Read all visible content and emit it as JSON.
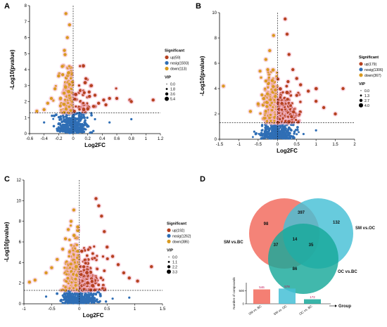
{
  "panels": [
    {
      "label": "A",
      "xlabel": "Log2FC",
      "ylabel": "-Log10(pvalue)",
      "xlim": [
        -0.6,
        1.2
      ],
      "ylim": [
        0,
        8
      ],
      "xticks": [
        "-0.6",
        "-0.4",
        "-0.2",
        "0",
        "0.2",
        "0.4",
        "0.6",
        "0.8",
        "1",
        "1.2"
      ],
      "yticks": [
        "0",
        "1",
        "2",
        "3",
        "4",
        "5",
        "6",
        "7",
        "8"
      ],
      "threshold_y": 1.3,
      "legend_title": "Significant",
      "legend_items": [
        "up(59)",
        "nosig(1593)",
        "down(113)"
      ],
      "vip_title": "VIP",
      "vip_items": [
        "0.0",
        "1.8",
        "3.6",
        "5.4"
      ]
    },
    {
      "label": "B",
      "xlabel": "Log2FC",
      "ylabel": "-Log10(pvalue)",
      "xlim": [
        -1.5,
        2
      ],
      "ylim": [
        0,
        10
      ],
      "xticks": [
        "-1.5",
        "-1",
        "-0.5",
        "0",
        "0.5",
        "1",
        "1.5",
        "2"
      ],
      "yticks": [
        "0",
        "2",
        "4",
        "6",
        "8",
        "10"
      ],
      "threshold_y": 1.3,
      "legend_title": "Significant",
      "legend_items": [
        "up(179)",
        "nosig(1306)",
        "down(367)"
      ],
      "vip_title": "VIP",
      "vip_items": [
        "0.0",
        "1.3",
        "2.7",
        "4.0"
      ]
    },
    {
      "label": "C",
      "xlabel": "Log2FC",
      "ylabel": "-Log10(pvalue)",
      "xlim": [
        -1,
        1.5
      ],
      "ylim": [
        0,
        12
      ],
      "xticks": [
        "-1",
        "-0.5",
        "0",
        "0.5",
        "1",
        "1.5"
      ],
      "yticks": [
        "0",
        "2",
        "4",
        "6",
        "8",
        "10",
        "12"
      ],
      "threshold_y": 1.3,
      "legend_title": "Significant",
      "legend_items": [
        "up(192)",
        "nosig(1262)",
        "down(386)"
      ],
      "vip_title": "VIP",
      "vip_items": [
        "0.0",
        "1.1",
        "2.2",
        "3.3"
      ]
    }
  ],
  "venn": {
    "label": "D",
    "sets": [
      "SM vs.BC",
      "SM vs.OC",
      "OC vs.BC"
    ],
    "regions": {
      "sm_bc_only": "98",
      "sm_bc_and_sm_oc": "397",
      "sm_oc_only": "132",
      "sm_bc_and_oc_bc": "37",
      "all_three": "14",
      "sm_oc_and_oc_bc": "35",
      "oc_bc_only": "86"
    }
  },
  "bar": {
    "ylabel": "Number of compounds",
    "xlabel": "Group",
    "yticks": [
      "500",
      "0"
    ],
    "categories": [
      "SM vs. BC",
      "SM vs. OC",
      "OC vs. BC"
    ],
    "value_labels": [
      "546",
      "578",
      "172"
    ]
  },
  "colors": {
    "up": "#b5411f",
    "nosig": "#2f6eb5",
    "down": "#d99a20",
    "halo": "#f6b8cc",
    "venn_sm_bc": "#f2685a",
    "venn_sm_oc": "#45bfd6",
    "venn_oc_bc": "#17a89a"
  },
  "chart_data": [
    {
      "type": "scatter",
      "title": "",
      "xlabel": "Log2FC",
      "ylabel": "-Log10(pvalue)",
      "xlim": [
        -0.6,
        1.2
      ],
      "ylim": [
        0,
        8
      ],
      "threshold_pvalue_line": 1.3,
      "series": [
        {
          "name": "up(59)",
          "points": [
            [
              0.35,
              1.9
            ],
            [
              0.42,
              2.1
            ],
            [
              0.5,
              2.2
            ],
            [
              0.6,
              2.2
            ],
            [
              0.78,
              2.1
            ],
            [
              0.8,
              2.0
            ],
            [
              1.1,
              2.1
            ],
            [
              0.3,
              2.4
            ],
            [
              0.28,
              1.7
            ],
            [
              0.45,
              1.8
            ],
            [
              0.22,
              2.6
            ],
            [
              0.25,
              3.0
            ]
          ]
        },
        {
          "name": "nosig(1593)",
          "points": [
            [
              0.0,
              0.3
            ],
            [
              0.1,
              0.6
            ],
            [
              -0.1,
              0.8
            ],
            [
              0.2,
              0.5
            ],
            [
              -0.2,
              0.4
            ],
            [
              0.3,
              0.9
            ],
            [
              0.5,
              0.7
            ],
            [
              0.8,
              0.9
            ],
            [
              -0.4,
              0.7
            ]
          ]
        },
        {
          "name": "down(113)",
          "points": [
            [
              -0.1,
              7.5
            ],
            [
              -0.05,
              6.8
            ],
            [
              -0.08,
              6.0
            ],
            [
              -0.12,
              5.2
            ],
            [
              -0.15,
              4.2
            ],
            [
              -0.2,
              3.6
            ],
            [
              -0.25,
              2.8
            ],
            [
              -0.3,
              2.2
            ],
            [
              -0.35,
              1.9
            ],
            [
              -0.4,
              1.5
            ],
            [
              -0.5,
              1.4
            ]
          ]
        }
      ]
    },
    {
      "type": "scatter",
      "title": "",
      "xlabel": "Log2FC",
      "ylabel": "-Log10(pvalue)",
      "xlim": [
        -1.5,
        2
      ],
      "ylim": [
        0,
        10
      ],
      "threshold_pvalue_line": 1.3,
      "series": [
        {
          "name": "up(179)",
          "points": [
            [
              0.2,
              9.5
            ],
            [
              0.25,
              8.3
            ],
            [
              0.3,
              6.7
            ],
            [
              0.4,
              5.5
            ],
            [
              0.5,
              4.8
            ],
            [
              0.6,
              4.3
            ],
            [
              0.8,
              3.8
            ],
            [
              1.0,
              3.0
            ],
            [
              1.2,
              2.5
            ],
            [
              1.7,
              4.0
            ],
            [
              1.5,
              2.0
            ]
          ]
        },
        {
          "name": "nosig(1306)",
          "points": [
            [
              0.0,
              0.5
            ],
            [
              -0.2,
              0.8
            ],
            [
              0.2,
              0.9
            ],
            [
              0.5,
              0.4
            ],
            [
              -0.6,
              0.6
            ],
            [
              1.0,
              0.7
            ]
          ]
        },
        {
          "name": "down(367)",
          "points": [
            [
              -0.1,
              8.2
            ],
            [
              -0.2,
              7.0
            ],
            [
              -0.3,
              6.3
            ],
            [
              -0.25,
              5.5
            ],
            [
              -0.3,
              4.6
            ],
            [
              -0.4,
              3.5
            ],
            [
              -0.5,
              2.8
            ],
            [
              -0.7,
              2.2
            ],
            [
              -1.4,
              4.2
            ]
          ]
        }
      ]
    },
    {
      "type": "scatter",
      "title": "",
      "xlabel": "Log2FC",
      "ylabel": "-Log10(pvalue)",
      "xlim": [
        -1,
        1.5
      ],
      "ylim": [
        0,
        12
      ],
      "threshold_pvalue_line": 1.3,
      "series": [
        {
          "name": "up(192)",
          "points": [
            [
              0.3,
              10.2
            ],
            [
              0.35,
              9.5
            ],
            [
              0.4,
              8.5
            ],
            [
              0.45,
              7.0
            ],
            [
              0.5,
              5.5
            ],
            [
              0.6,
              4.6
            ],
            [
              0.7,
              3.8
            ],
            [
              0.8,
              3.0
            ],
            [
              0.9,
              2.5
            ],
            [
              1.3,
              3.6
            ],
            [
              1.05,
              2.2
            ]
          ]
        },
        {
          "name": "nosig(1262)",
          "points": [
            [
              0.0,
              0.6
            ],
            [
              -0.3,
              0.8
            ],
            [
              0.3,
              0.9
            ],
            [
              0.6,
              0.5
            ],
            [
              -0.6,
              0.7
            ],
            [
              0.9,
              0.6
            ]
          ]
        },
        {
          "name": "down(386)",
          "points": [
            [
              -0.1,
              9.1
            ],
            [
              -0.15,
              8.0
            ],
            [
              -0.2,
              7.2
            ],
            [
              -0.25,
              6.3
            ],
            [
              -0.3,
              5.3
            ],
            [
              -0.4,
              4.3
            ],
            [
              -0.5,
              3.5
            ],
            [
              -0.6,
              3.0
            ],
            [
              -0.8,
              2.3
            ],
            [
              -0.9,
              2.1
            ]
          ]
        }
      ]
    },
    {
      "type": "venn",
      "sets": [
        "SM vs.BC",
        "SM vs.OC",
        "OC vs.BC"
      ],
      "region_counts": {
        "SM vs.BC only": 98,
        "SM vs.BC & SM vs.OC": 397,
        "SM vs.OC only": 132,
        "SM vs.BC & OC vs.BC": 37,
        "all three": 14,
        "SM vs.OC & OC vs.BC": 35,
        "OC vs.BC only": 86
      }
    },
    {
      "type": "bar",
      "xlabel": "Group",
      "ylabel": "Number of compounds",
      "categories": [
        "SM vs. BC",
        "SM vs. OC",
        "OC vs. BC"
      ],
      "values": [
        546,
        578,
        172
      ],
      "ylim": [
        0,
        800
      ]
    }
  ]
}
